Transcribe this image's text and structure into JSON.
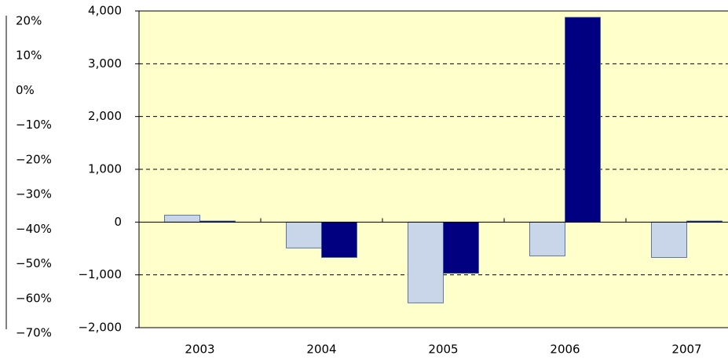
{
  "chart_data": {
    "type": "bar",
    "categories": [
      "2003",
      "2004",
      "2005",
      "2006",
      "2007"
    ],
    "series": [
      {
        "color": "#c9d5e9",
        "values": [
          130,
          -490,
          -1530,
          -640,
          -670
        ]
      },
      {
        "color": "#000080",
        "values": [
          20,
          -670,
          -970,
          3880,
          20
        ]
      }
    ],
    "ylim": [
      -2000,
      4000
    ],
    "yticks": [
      {
        "value": -2000,
        "label": "−2,000"
      },
      {
        "value": -1000,
        "label": "−1,000"
      },
      0,
      {
        "value": 1000,
        "label": "1,000"
      },
      {
        "value": 2000,
        "label": "2,000"
      },
      {
        "value": 3000,
        "label": "3,000"
      },
      {
        "value": 4000,
        "label": "4,000"
      }
    ],
    "y2lim": [
      -70,
      20
    ],
    "y2ticks": [
      {
        "value": -70,
        "label": "−70%"
      },
      {
        "value": -60,
        "label": "−60%"
      },
      {
        "value": -50,
        "label": "−50%"
      },
      {
        "value": -40,
        "label": "−40%"
      },
      {
        "value": -30,
        "label": "−30%"
      },
      {
        "value": -20,
        "label": "−20%"
      },
      {
        "value": -10,
        "label": "−10%"
      },
      {
        "value": 0,
        "label": "0%"
      },
      {
        "value": 10,
        "label": "10%"
      },
      {
        "value": 20,
        "label": "20%"
      }
    ],
    "grid": true,
    "plot_background": "#ffffcc"
  }
}
